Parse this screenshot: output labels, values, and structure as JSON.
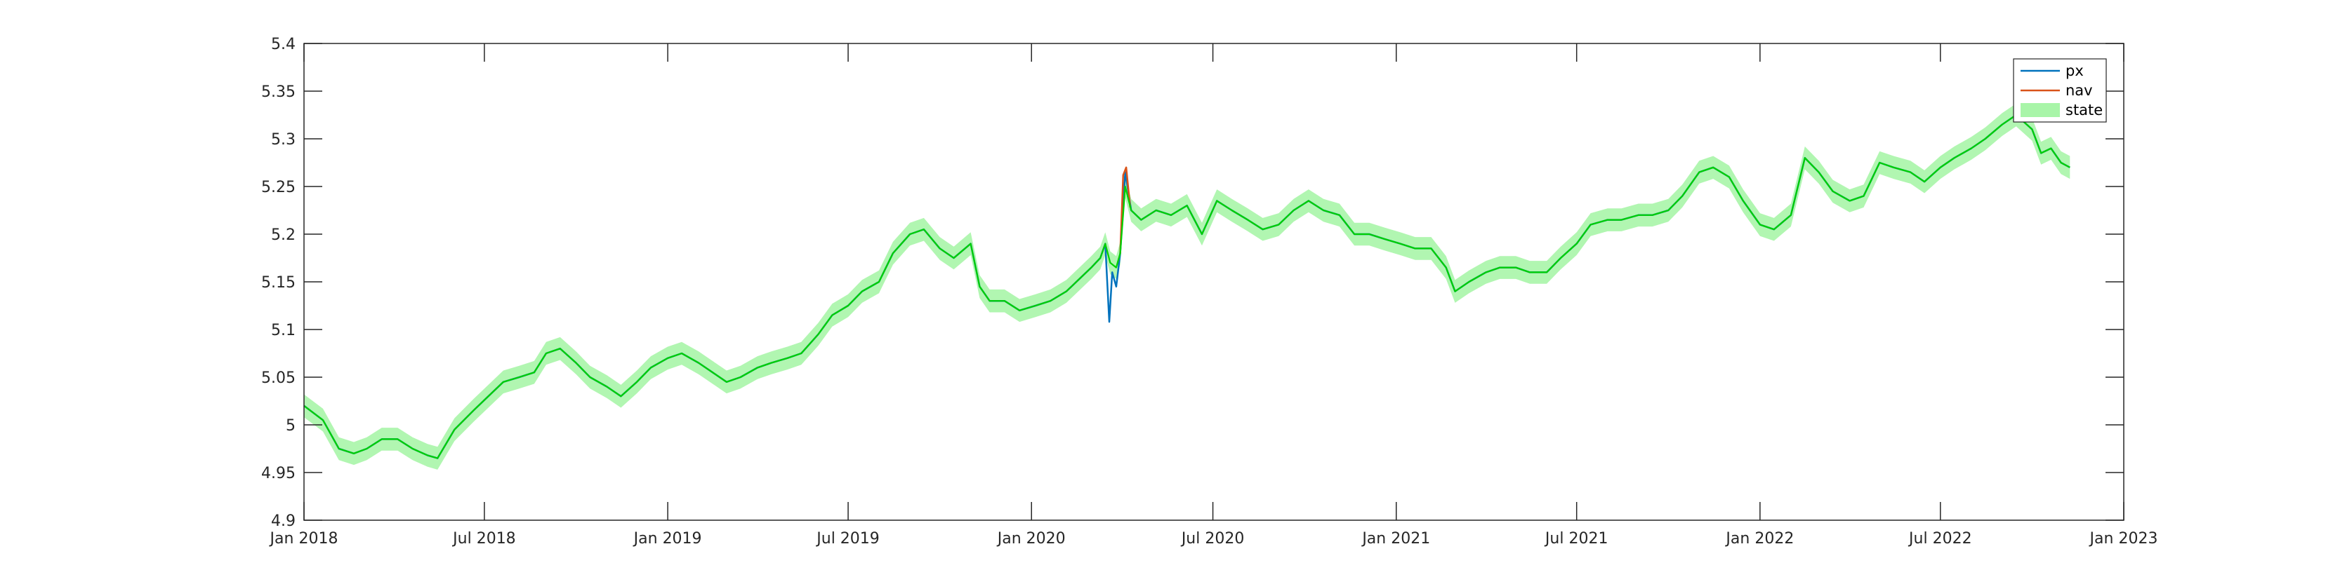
{
  "chart_data": {
    "type": "line",
    "title": "",
    "xlabel": "",
    "ylabel": "",
    "xlim": [
      "2018-01-01",
      "2023-01-01"
    ],
    "ylim": [
      4.9,
      5.4
    ],
    "grid": false,
    "legend_position": "top-right",
    "x_ticks": [
      "2018-01-01",
      "2018-07-01",
      "2019-01-01",
      "2019-07-01",
      "2020-01-01",
      "2020-07-01",
      "2021-01-01",
      "2021-07-01",
      "2022-01-01",
      "2022-07-01",
      "2023-01-01"
    ],
    "x_tick_labels": [
      "Jan 2018",
      "Jul 2018",
      "Jan 2019",
      "Jul 2019",
      "Jan 2020",
      "Jul 2020",
      "Jan 2021",
      "Jul 2021",
      "Jan 2022",
      "Jul 2022",
      "Jan 2023"
    ],
    "y_ticks": [
      4.9,
      4.95,
      5,
      5.05,
      5.1,
      5.15,
      5.2,
      5.25,
      5.3,
      5.35,
      5.4
    ],
    "y_tick_labels": [
      "4.9",
      "4.95",
      "5",
      "5.05",
      "5.1",
      "5.15",
      "5.2",
      "5.25",
      "5.3",
      "5.35",
      "5.4"
    ],
    "legend": [
      {
        "label": "px",
        "color": "#0072BD",
        "kind": "line"
      },
      {
        "label": "nav",
        "color": "#D95319",
        "kind": "line"
      },
      {
        "label": "state",
        "color": "#A8F5A8",
        "kind": "patch"
      }
    ],
    "state_band_halfwidth": 0.012,
    "series": [
      {
        "name": "px",
        "color": "#0072BD",
        "points": [
          [
            "2018-01-01",
            5.02
          ],
          [
            "2018-01-20",
            5.005
          ],
          [
            "2018-02-05",
            4.975
          ],
          [
            "2018-02-20",
            4.97
          ],
          [
            "2018-03-05",
            4.975
          ],
          [
            "2018-03-20",
            4.985
          ],
          [
            "2018-04-05",
            4.985
          ],
          [
            "2018-04-20",
            4.975
          ],
          [
            "2018-05-05",
            4.968
          ],
          [
            "2018-05-15",
            4.965
          ],
          [
            "2018-06-01",
            4.995
          ],
          [
            "2018-06-20",
            5.015
          ],
          [
            "2018-07-05",
            5.03
          ],
          [
            "2018-07-20",
            5.045
          ],
          [
            "2018-08-05",
            5.05
          ],
          [
            "2018-08-20",
            5.055
          ],
          [
            "2018-09-01",
            5.075
          ],
          [
            "2018-09-15",
            5.08
          ],
          [
            "2018-10-01",
            5.065
          ],
          [
            "2018-10-15",
            5.05
          ],
          [
            "2018-11-01",
            5.04
          ],
          [
            "2018-11-15",
            5.03
          ],
          [
            "2018-12-01",
            5.045
          ],
          [
            "2018-12-15",
            5.06
          ],
          [
            "2019-01-01",
            5.07
          ],
          [
            "2019-01-15",
            5.075
          ],
          [
            "2019-02-01",
            5.065
          ],
          [
            "2019-02-15",
            5.055
          ],
          [
            "2019-03-01",
            5.045
          ],
          [
            "2019-03-15",
            5.05
          ],
          [
            "2019-04-01",
            5.06
          ],
          [
            "2019-04-15",
            5.065
          ],
          [
            "2019-05-01",
            5.07
          ],
          [
            "2019-05-15",
            5.075
          ],
          [
            "2019-06-01",
            5.095
          ],
          [
            "2019-06-15",
            5.115
          ],
          [
            "2019-07-01",
            5.125
          ],
          [
            "2019-07-15",
            5.14
          ],
          [
            "2019-08-01",
            5.15
          ],
          [
            "2019-08-15",
            5.18
          ],
          [
            "2019-09-01",
            5.2
          ],
          [
            "2019-09-15",
            5.205
          ],
          [
            "2019-10-01",
            5.185
          ],
          [
            "2019-10-15",
            5.175
          ],
          [
            "2019-11-01",
            5.19
          ],
          [
            "2019-11-10",
            5.145
          ],
          [
            "2019-11-20",
            5.13
          ],
          [
            "2019-12-05",
            5.13
          ],
          [
            "2019-12-20",
            5.12
          ],
          [
            "2020-01-05",
            5.125
          ],
          [
            "2020-01-20",
            5.13
          ],
          [
            "2020-02-05",
            5.14
          ],
          [
            "2020-02-20",
            5.155
          ],
          [
            "2020-03-01",
            5.165
          ],
          [
            "2020-03-10",
            5.175
          ],
          [
            "2020-03-15",
            5.19
          ],
          [
            "2020-03-19",
            5.108
          ],
          [
            "2020-03-22",
            5.16
          ],
          [
            "2020-03-26",
            5.145
          ],
          [
            "2020-03-30",
            5.18
          ],
          [
            "2020-04-04",
            5.265
          ],
          [
            "2020-04-10",
            5.225
          ],
          [
            "2020-04-20",
            5.215
          ],
          [
            "2020-05-05",
            5.225
          ],
          [
            "2020-05-20",
            5.22
          ],
          [
            "2020-06-05",
            5.23
          ],
          [
            "2020-06-20",
            5.2
          ],
          [
            "2020-07-05",
            5.235
          ],
          [
            "2020-07-20",
            5.225
          ],
          [
            "2020-08-05",
            5.215
          ],
          [
            "2020-08-20",
            5.205
          ],
          [
            "2020-09-05",
            5.21
          ],
          [
            "2020-09-20",
            5.225
          ],
          [
            "2020-10-05",
            5.235
          ],
          [
            "2020-10-20",
            5.225
          ],
          [
            "2020-11-05",
            5.22
          ],
          [
            "2020-11-20",
            5.2
          ],
          [
            "2020-12-05",
            5.2
          ],
          [
            "2020-12-20",
            5.195
          ],
          [
            "2021-01-05",
            5.19
          ],
          [
            "2021-01-20",
            5.185
          ],
          [
            "2021-02-05",
            5.185
          ],
          [
            "2021-02-20",
            5.165
          ],
          [
            "2021-03-01",
            5.14
          ],
          [
            "2021-03-15",
            5.15
          ],
          [
            "2021-04-01",
            5.16
          ],
          [
            "2021-04-15",
            5.165
          ],
          [
            "2021-05-01",
            5.165
          ],
          [
            "2021-05-15",
            5.16
          ],
          [
            "2021-06-01",
            5.16
          ],
          [
            "2021-06-15",
            5.175
          ],
          [
            "2021-07-01",
            5.19
          ],
          [
            "2021-07-15",
            5.21
          ],
          [
            "2021-08-01",
            5.215
          ],
          [
            "2021-08-15",
            5.215
          ],
          [
            "2021-09-01",
            5.22
          ],
          [
            "2021-09-15",
            5.22
          ],
          [
            "2021-10-01",
            5.225
          ],
          [
            "2021-10-15",
            5.24
          ],
          [
            "2021-11-01",
            5.265
          ],
          [
            "2021-11-15",
            5.27
          ],
          [
            "2021-12-01",
            5.26
          ],
          [
            "2021-12-15",
            5.235
          ],
          [
            "2022-01-01",
            5.21
          ],
          [
            "2022-01-15",
            5.205
          ],
          [
            "2022-02-01",
            5.22
          ],
          [
            "2022-02-15",
            5.28
          ],
          [
            "2022-03-01",
            5.265
          ],
          [
            "2022-03-15",
            5.245
          ],
          [
            "2022-04-01",
            5.235
          ],
          [
            "2022-04-15",
            5.24
          ],
          [
            "2022-05-01",
            5.275
          ],
          [
            "2022-05-15",
            5.27
          ],
          [
            "2022-06-01",
            5.265
          ],
          [
            "2022-06-15",
            5.255
          ],
          [
            "2022-07-01",
            5.27
          ],
          [
            "2022-07-15",
            5.28
          ],
          [
            "2022-08-01",
            5.29
          ],
          [
            "2022-08-15",
            5.3
          ],
          [
            "2022-09-01",
            5.315
          ],
          [
            "2022-09-15",
            5.325
          ],
          [
            "2022-10-01",
            5.31
          ],
          [
            "2022-10-10",
            5.285
          ],
          [
            "2022-10-20",
            5.29
          ],
          [
            "2022-10-30",
            5.275
          ],
          [
            "2022-11-08",
            5.27
          ]
        ]
      },
      {
        "name": "nav",
        "color": "#D95319",
        "points": [
          [
            "2020-03-30",
            5.18
          ],
          [
            "2020-04-02",
            5.262
          ],
          [
            "2020-04-05",
            5.27
          ],
          [
            "2020-04-09",
            5.228
          ]
        ]
      },
      {
        "name": "state",
        "color": "#00D100",
        "points": [
          [
            "2018-01-01",
            5.02
          ],
          [
            "2018-01-20",
            5.005
          ],
          [
            "2018-02-05",
            4.975
          ],
          [
            "2018-02-20",
            4.97
          ],
          [
            "2018-03-05",
            4.975
          ],
          [
            "2018-03-20",
            4.985
          ],
          [
            "2018-04-05",
            4.985
          ],
          [
            "2018-04-20",
            4.975
          ],
          [
            "2018-05-05",
            4.968
          ],
          [
            "2018-05-15",
            4.965
          ],
          [
            "2018-06-01",
            4.995
          ],
          [
            "2018-06-20",
            5.015
          ],
          [
            "2018-07-05",
            5.03
          ],
          [
            "2018-07-20",
            5.045
          ],
          [
            "2018-08-05",
            5.05
          ],
          [
            "2018-08-20",
            5.055
          ],
          [
            "2018-09-01",
            5.075
          ],
          [
            "2018-09-15",
            5.08
          ],
          [
            "2018-10-01",
            5.065
          ],
          [
            "2018-10-15",
            5.05
          ],
          [
            "2018-11-01",
            5.04
          ],
          [
            "2018-11-15",
            5.03
          ],
          [
            "2018-12-01",
            5.045
          ],
          [
            "2018-12-15",
            5.06
          ],
          [
            "2019-01-01",
            5.07
          ],
          [
            "2019-01-15",
            5.075
          ],
          [
            "2019-02-01",
            5.065
          ],
          [
            "2019-02-15",
            5.055
          ],
          [
            "2019-03-01",
            5.045
          ],
          [
            "2019-03-15",
            5.05
          ],
          [
            "2019-04-01",
            5.06
          ],
          [
            "2019-04-15",
            5.065
          ],
          [
            "2019-05-01",
            5.07
          ],
          [
            "2019-05-15",
            5.075
          ],
          [
            "2019-06-01",
            5.095
          ],
          [
            "2019-06-15",
            5.115
          ],
          [
            "2019-07-01",
            5.125
          ],
          [
            "2019-07-15",
            5.14
          ],
          [
            "2019-08-01",
            5.15
          ],
          [
            "2019-08-15",
            5.18
          ],
          [
            "2019-09-01",
            5.2
          ],
          [
            "2019-09-15",
            5.205
          ],
          [
            "2019-10-01",
            5.185
          ],
          [
            "2019-10-15",
            5.175
          ],
          [
            "2019-11-01",
            5.19
          ],
          [
            "2019-11-10",
            5.145
          ],
          [
            "2019-11-20",
            5.13
          ],
          [
            "2019-12-05",
            5.13
          ],
          [
            "2019-12-20",
            5.12
          ],
          [
            "2020-01-05",
            5.125
          ],
          [
            "2020-01-20",
            5.13
          ],
          [
            "2020-02-05",
            5.14
          ],
          [
            "2020-02-20",
            5.155
          ],
          [
            "2020-03-01",
            5.165
          ],
          [
            "2020-03-10",
            5.175
          ],
          [
            "2020-03-15",
            5.19
          ],
          [
            "2020-03-20",
            5.17
          ],
          [
            "2020-03-26",
            5.165
          ],
          [
            "2020-03-30",
            5.18
          ],
          [
            "2020-04-04",
            5.25
          ],
          [
            "2020-04-10",
            5.225
          ],
          [
            "2020-04-20",
            5.215
          ],
          [
            "2020-05-05",
            5.225
          ],
          [
            "2020-05-20",
            5.22
          ],
          [
            "2020-06-05",
            5.23
          ],
          [
            "2020-06-20",
            5.2
          ],
          [
            "2020-07-05",
            5.235
          ],
          [
            "2020-07-20",
            5.225
          ],
          [
            "2020-08-05",
            5.215
          ],
          [
            "2020-08-20",
            5.205
          ],
          [
            "2020-09-05",
            5.21
          ],
          [
            "2020-09-20",
            5.225
          ],
          [
            "2020-10-05",
            5.235
          ],
          [
            "2020-10-20",
            5.225
          ],
          [
            "2020-11-05",
            5.22
          ],
          [
            "2020-11-20",
            5.2
          ],
          [
            "2020-12-05",
            5.2
          ],
          [
            "2020-12-20",
            5.195
          ],
          [
            "2021-01-05",
            5.19
          ],
          [
            "2021-01-20",
            5.185
          ],
          [
            "2021-02-05",
            5.185
          ],
          [
            "2021-02-20",
            5.165
          ],
          [
            "2021-03-01",
            5.14
          ],
          [
            "2021-03-15",
            5.15
          ],
          [
            "2021-04-01",
            5.16
          ],
          [
            "2021-04-15",
            5.165
          ],
          [
            "2021-05-01",
            5.165
          ],
          [
            "2021-05-15",
            5.16
          ],
          [
            "2021-06-01",
            5.16
          ],
          [
            "2021-06-15",
            5.175
          ],
          [
            "2021-07-01",
            5.19
          ],
          [
            "2021-07-15",
            5.21
          ],
          [
            "2021-08-01",
            5.215
          ],
          [
            "2021-08-15",
            5.215
          ],
          [
            "2021-09-01",
            5.22
          ],
          [
            "2021-09-15",
            5.22
          ],
          [
            "2021-10-01",
            5.225
          ],
          [
            "2021-10-15",
            5.24
          ],
          [
            "2021-11-01",
            5.265
          ],
          [
            "2021-11-15",
            5.27
          ],
          [
            "2021-12-01",
            5.26
          ],
          [
            "2021-12-15",
            5.235
          ],
          [
            "2022-01-01",
            5.21
          ],
          [
            "2022-01-15",
            5.205
          ],
          [
            "2022-02-01",
            5.22
          ],
          [
            "2022-02-15",
            5.28
          ],
          [
            "2022-03-01",
            5.265
          ],
          [
            "2022-03-15",
            5.245
          ],
          [
            "2022-04-01",
            5.235
          ],
          [
            "2022-04-15",
            5.24
          ],
          [
            "2022-05-01",
            5.275
          ],
          [
            "2022-05-15",
            5.27
          ],
          [
            "2022-06-01",
            5.265
          ],
          [
            "2022-06-15",
            5.255
          ],
          [
            "2022-07-01",
            5.27
          ],
          [
            "2022-07-15",
            5.28
          ],
          [
            "2022-08-01",
            5.29
          ],
          [
            "2022-08-15",
            5.3
          ],
          [
            "2022-09-01",
            5.315
          ],
          [
            "2022-09-15",
            5.325
          ],
          [
            "2022-10-01",
            5.31
          ],
          [
            "2022-10-10",
            5.285
          ],
          [
            "2022-10-20",
            5.29
          ],
          [
            "2022-10-30",
            5.275
          ],
          [
            "2022-11-08",
            5.27
          ]
        ]
      }
    ]
  }
}
